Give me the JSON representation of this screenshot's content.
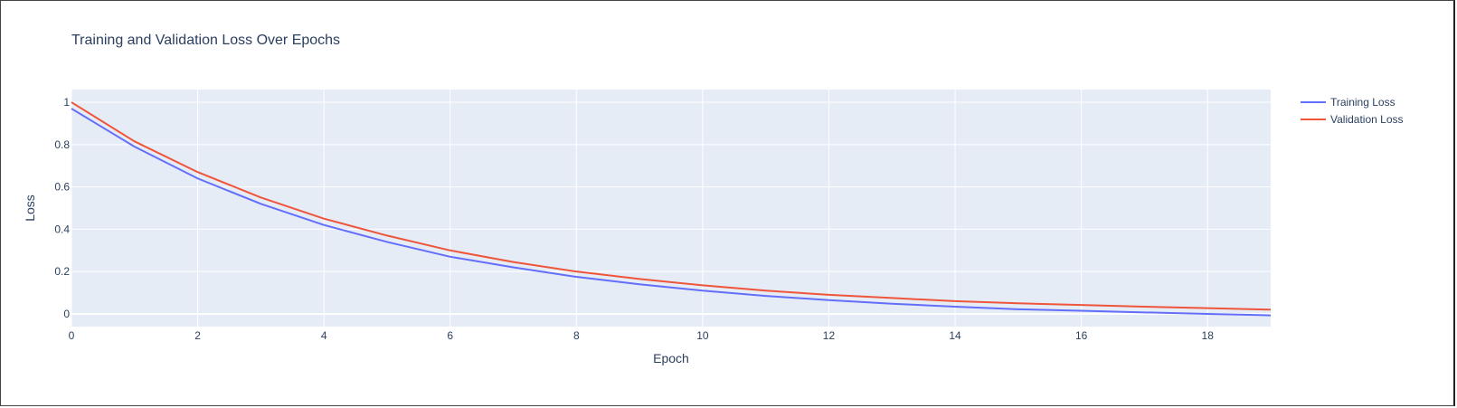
{
  "chart_data": {
    "type": "line",
    "title": "Training and Validation Loss Over Epochs",
    "xlabel": "Epoch",
    "ylabel": "Loss",
    "xlim": [
      0,
      19
    ],
    "ylim": [
      -0.06,
      1.06
    ],
    "x_ticks": [
      0,
      2,
      4,
      6,
      8,
      10,
      12,
      14,
      16,
      18
    ],
    "y_ticks": [
      0,
      0.2,
      0.4,
      0.6,
      0.8,
      1
    ],
    "grid": true,
    "legend_position": "top-right",
    "x": [
      0,
      1,
      2,
      3,
      4,
      5,
      6,
      7,
      8,
      9,
      10,
      11,
      12,
      13,
      14,
      15,
      16,
      17,
      18,
      19
    ],
    "series": [
      {
        "name": "Training Loss",
        "color": "#636efa",
        "values": [
          0.97,
          0.79,
          0.64,
          0.52,
          0.42,
          0.34,
          0.27,
          0.22,
          0.175,
          0.14,
          0.11,
          0.085,
          0.065,
          0.048,
          0.034,
          0.022,
          0.015,
          0.007,
          0.0,
          -0.007
        ]
      },
      {
        "name": "Validation Loss",
        "color": "#ef553b",
        "values": [
          1.0,
          0.815,
          0.67,
          0.55,
          0.45,
          0.37,
          0.3,
          0.245,
          0.2,
          0.165,
          0.135,
          0.11,
          0.09,
          0.075,
          0.06,
          0.05,
          0.042,
          0.034,
          0.027,
          0.02
        ]
      }
    ],
    "plot_bg": "#e5ecf6"
  }
}
